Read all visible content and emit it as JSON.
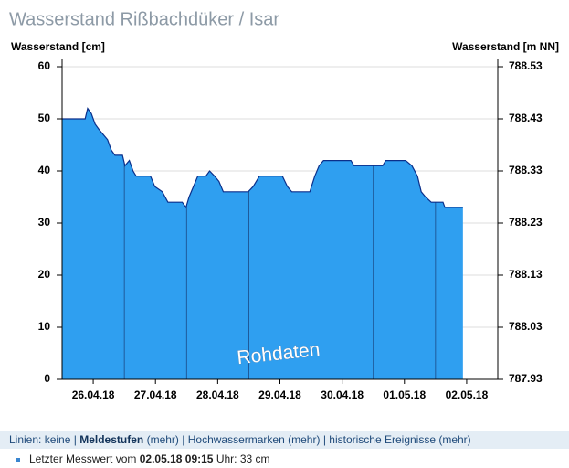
{
  "chart_data": {
    "type": "area",
    "title": "Wasserstand Rißbachdüker / Isar",
    "y_label": "Wasserstand [cm]",
    "y2_label": "Wasserstand [m NN]",
    "annotation": "Rohdaten",
    "xlim": [
      0,
      7
    ],
    "xticks": [
      {
        "value": 0.5,
        "label": "26.04.18"
      },
      {
        "value": 1.5,
        "label": "27.04.18"
      },
      {
        "value": 2.5,
        "label": "28.04.18"
      },
      {
        "value": 3.5,
        "label": "29.04.18"
      },
      {
        "value": 4.5,
        "label": "30.04.18"
      },
      {
        "value": 5.5,
        "label": "01.05.18"
      },
      {
        "value": 6.5,
        "label": "02.05.18"
      }
    ],
    "ylim": [
      0,
      60
    ],
    "yticks": [
      0,
      10,
      20,
      30,
      40,
      50,
      60
    ],
    "y2lim": [
      787.93,
      788.53
    ],
    "y2ticks": [
      787.93,
      788.03,
      788.13,
      788.23,
      788.33,
      788.43,
      788.53
    ],
    "grid": true,
    "x": [
      0,
      0.37,
      0.41,
      0.47,
      0.53,
      0.59,
      0.66,
      0.73,
      0.79,
      0.85,
      0.97,
      1.01,
      1.08,
      1.14,
      1.19,
      1.42,
      1.49,
      1.61,
      1.7,
      1.93,
      1.99,
      2.04,
      2.11,
      2.18,
      2.31,
      2.37,
      2.45,
      2.52,
      2.59,
      2.99,
      3.07,
      3.17,
      3.54,
      3.62,
      3.69,
      3.98,
      4.06,
      4.13,
      4.2,
      4.64,
      4.69,
      5.15,
      5.2,
      5.52,
      5.62,
      5.71,
      5.77,
      5.84,
      5.93,
      6.12,
      6.15,
      6.44
    ],
    "series": [
      {
        "color": "#2f9ff0",
        "line_color": "#0b2f8a",
        "values": [
          50,
          50,
          52,
          51,
          49,
          48,
          47,
          46,
          44,
          43,
          43,
          41,
          42,
          40,
          39,
          39,
          37,
          36,
          34,
          34,
          33,
          35,
          37,
          39,
          39,
          40,
          39,
          38,
          36,
          36,
          37,
          39,
          39,
          37,
          36,
          36,
          39,
          41,
          42,
          42,
          41,
          41,
          42,
          42,
          41,
          39,
          36,
          35,
          34,
          34,
          33,
          33
        ]
      }
    ]
  },
  "footer": {
    "lines_label": "Linien:",
    "none": "keine",
    "levels": "Meldestufen",
    "marks": "Hochwassermarken",
    "events": "historische Ereignisse",
    "more": "(mehr)",
    "separator": "|",
    "last_prefix": "Letzter Messwert vom",
    "last_time": "02.05.18 09:15",
    "last_unit": "Uhr:",
    "last_value": "33 cm"
  }
}
